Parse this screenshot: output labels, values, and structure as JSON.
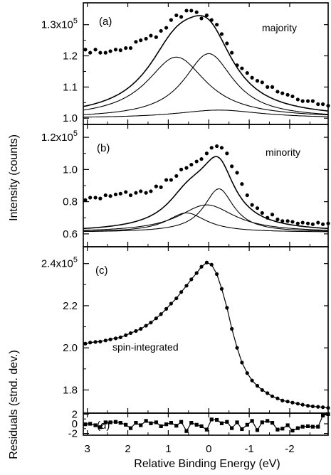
{
  "chart_data": [
    {
      "type": "scatter",
      "panel_label": "(a)",
      "annotation": "majority",
      "y_ticks": [
        "1.3x10^5",
        "1.2",
        "1.1",
        "1.0"
      ],
      "ytick_values": [
        130000,
        120000,
        110000,
        100000
      ],
      "ylim": [
        98000,
        137000
      ],
      "xlim": [
        3.1,
        -2.95
      ],
      "points": [
        [
          3.05,
          122000
        ],
        [
          2.93,
          121000
        ],
        [
          2.8,
          122000
        ],
        [
          2.68,
          121000
        ],
        [
          2.55,
          121000
        ],
        [
          2.43,
          121500
        ],
        [
          2.3,
          122000
        ],
        [
          2.18,
          121800
        ],
        [
          2.05,
          122500
        ],
        [
          1.93,
          122500
        ],
        [
          1.8,
          124500
        ],
        [
          1.68,
          125000
        ],
        [
          1.55,
          125500
        ],
        [
          1.43,
          126500
        ],
        [
          1.3,
          126000
        ],
        [
          1.18,
          128000
        ],
        [
          1.05,
          129000
        ],
        [
          0.93,
          131500
        ],
        [
          0.8,
          133000
        ],
        [
          0.68,
          132500
        ],
        [
          0.55,
          134500
        ],
        [
          0.43,
          134500
        ],
        [
          0.3,
          134000
        ],
        [
          0.18,
          132000
        ],
        [
          0.05,
          133000
        ],
        [
          -0.07,
          131500
        ],
        [
          -0.2,
          130000
        ],
        [
          -0.32,
          127000
        ],
        [
          -0.45,
          124000
        ],
        [
          -0.57,
          121000
        ],
        [
          -0.7,
          117000
        ],
        [
          -0.82,
          116000
        ],
        [
          -0.95,
          114500
        ],
        [
          -1.07,
          113000
        ],
        [
          -1.2,
          112000
        ],
        [
          -1.32,
          111500
        ],
        [
          -1.45,
          110000
        ],
        [
          -1.57,
          110000
        ],
        [
          -1.7,
          108500
        ],
        [
          -1.82,
          108000
        ],
        [
          -1.95,
          107500
        ],
        [
          -2.07,
          107000
        ],
        [
          -2.2,
          106000
        ],
        [
          -2.32,
          105500
        ],
        [
          -2.45,
          105500
        ],
        [
          -2.57,
          105500
        ],
        [
          -2.7,
          104500
        ],
        [
          -2.82,
          104500
        ],
        [
          -2.95,
          104000
        ]
      ],
      "curves": [
        {
          "kind": "total",
          "baseline": 100000,
          "components": [
            {
              "a": 19600,
              "c": 0.8,
              "w": 0.9
            },
            {
              "a": 20700,
              "c": 0.0,
              "w": 0.75
            }
          ]
        },
        {
          "kind": "component",
          "baseline": 100000,
          "components": [
            {
              "a": 19600,
              "c": 0.8,
              "w": 0.9
            }
          ]
        },
        {
          "kind": "component",
          "baseline": 100000,
          "components": [
            {
              "a": 20700,
              "c": 0.0,
              "w": 0.75
            }
          ]
        },
        {
          "kind": "background",
          "baseline": 100000,
          "components": [
            {
              "a": 2600,
              "c": -0.25,
              "w": 1.3
            }
          ]
        }
      ]
    },
    {
      "type": "scatter",
      "panel_label": "(b)",
      "annotation": "minority",
      "y_ticks": [
        "1.2x10^5",
        "1.0",
        "0.8",
        "0.6"
      ],
      "ytick_values": [
        120000,
        100000,
        80000,
        60000
      ],
      "ylim": [
        52000,
        128000
      ],
      "xlim": [
        3.1,
        -2.95
      ],
      "points": [
        [
          3.05,
          81000
        ],
        [
          2.93,
          82500
        ],
        [
          2.8,
          82500
        ],
        [
          2.68,
          82000
        ],
        [
          2.55,
          84000
        ],
        [
          2.43,
          83500
        ],
        [
          2.3,
          84500
        ],
        [
          2.18,
          85000
        ],
        [
          2.05,
          86000
        ],
        [
          1.93,
          84000
        ],
        [
          1.8,
          85500
        ],
        [
          1.68,
          86500
        ],
        [
          1.55,
          85500
        ],
        [
          1.43,
          86500
        ],
        [
          1.3,
          89500
        ],
        [
          1.18,
          89000
        ],
        [
          1.05,
          93500
        ],
        [
          0.93,
          93500
        ],
        [
          0.8,
          96000
        ],
        [
          0.68,
          100000
        ],
        [
          0.55,
          101000
        ],
        [
          0.43,
          103000
        ],
        [
          0.3,
          105000
        ],
        [
          0.18,
          106500
        ],
        [
          0.05,
          110000
        ],
        [
          -0.07,
          113500
        ],
        [
          -0.2,
          114500
        ],
        [
          -0.32,
          113500
        ],
        [
          -0.45,
          110000
        ],
        [
          -0.57,
          102000
        ],
        [
          -0.7,
          98000
        ],
        [
          -0.82,
          91000
        ],
        [
          -0.95,
          84000
        ],
        [
          -1.07,
          78000
        ],
        [
          -1.2,
          76000
        ],
        [
          -1.32,
          73000
        ],
        [
          -1.45,
          70000
        ],
        [
          -1.57,
          72000
        ],
        [
          -1.7,
          69000
        ],
        [
          -1.82,
          68000
        ],
        [
          -1.95,
          68000
        ],
        [
          -2.07,
          67500
        ],
        [
          -2.2,
          66500
        ],
        [
          -2.32,
          67000
        ],
        [
          -2.45,
          66500
        ],
        [
          -2.57,
          66000
        ],
        [
          -2.7,
          67000
        ],
        [
          -2.82,
          66000
        ],
        [
          -2.95,
          66500
        ]
      ],
      "curves": [
        {
          "kind": "total",
          "baseline": 61000,
          "components": [
            {
              "a": 12000,
              "c": 0.55,
              "w": 0.6
            },
            {
              "a": 17000,
              "c": 0.05,
              "w": 0.85
            },
            {
              "a": 27000,
              "c": -0.25,
              "w": 0.45
            }
          ]
        },
        {
          "kind": "component",
          "baseline": 61000,
          "components": [
            {
              "a": 12000,
              "c": 0.55,
              "w": 0.6
            }
          ]
        },
        {
          "kind": "component",
          "baseline": 61000,
          "components": [
            {
              "a": 17000,
              "c": 0.05,
              "w": 0.85
            }
          ]
        },
        {
          "kind": "component",
          "baseline": 61000,
          "components": [
            {
              "a": 27000,
              "c": -0.25,
              "w": 0.45
            }
          ]
        }
      ]
    },
    {
      "type": "scatter",
      "panel_label": "(c)",
      "annotation": "spin-integrated",
      "y_ticks": [
        "2.4x10^5",
        "2.2",
        "2.0",
        "1.8"
      ],
      "ytick_values": [
        240000,
        220000,
        200000,
        180000
      ],
      "ylim": [
        169000,
        248000
      ],
      "xlim": [
        3.1,
        -2.95
      ],
      "points": [
        [
          3.05,
          202000
        ],
        [
          2.93,
          202500
        ],
        [
          2.8,
          202800
        ],
        [
          2.68,
          203000
        ],
        [
          2.55,
          203500
        ],
        [
          2.43,
          204000
        ],
        [
          2.3,
          204500
        ],
        [
          2.18,
          205000
        ],
        [
          2.05,
          206000
        ],
        [
          1.93,
          207000
        ],
        [
          1.8,
          208000
        ],
        [
          1.68,
          209000
        ],
        [
          1.55,
          210500
        ],
        [
          1.43,
          212000
        ],
        [
          1.3,
          214000
        ],
        [
          1.18,
          216000
        ],
        [
          1.05,
          218500
        ],
        [
          0.93,
          221000
        ],
        [
          0.8,
          223500
        ],
        [
          0.68,
          226500
        ],
        [
          0.55,
          229500
        ],
        [
          0.43,
          232500
        ],
        [
          0.3,
          235500
        ],
        [
          0.18,
          238500
        ],
        [
          0.05,
          240500
        ],
        [
          -0.07,
          239500
        ],
        [
          -0.2,
          235000
        ],
        [
          -0.32,
          228000
        ],
        [
          -0.45,
          219000
        ],
        [
          -0.57,
          209000
        ],
        [
          -0.7,
          200000
        ],
        [
          -0.82,
          193000
        ],
        [
          -0.95,
          188000
        ],
        [
          -1.07,
          184500
        ],
        [
          -1.2,
          182000
        ],
        [
          -1.32,
          180000
        ],
        [
          -1.45,
          178500
        ],
        [
          -1.57,
          177000
        ],
        [
          -1.7,
          176000
        ],
        [
          -1.82,
          175000
        ],
        [
          -1.95,
          174500
        ],
        [
          -2.07,
          174000
        ],
        [
          -2.2,
          173500
        ],
        [
          -2.32,
          173000
        ],
        [
          -2.45,
          172500
        ],
        [
          -2.57,
          172200
        ],
        [
          -2.7,
          172000
        ],
        [
          -2.82,
          171800
        ],
        [
          -2.95,
          171500
        ]
      ],
      "line_through_points": true
    },
    {
      "type": "line",
      "panel_label": "(d)",
      "y_ticks": [
        "2",
        "0",
        "-2"
      ],
      "ytick_values": [
        2,
        0,
        -2
      ],
      "ylim": [
        -2.35,
        2.2
      ],
      "xlim": [
        3.1,
        -2.95
      ],
      "x_ticks": [
        "3",
        "2",
        "1",
        "0",
        "-1",
        "-2"
      ],
      "xtick_values": [
        3,
        2,
        1,
        0,
        -1,
        -2
      ],
      "points": [
        [
          3.05,
          -0.1
        ],
        [
          2.93,
          0.0
        ],
        [
          2.8,
          -0.3
        ],
        [
          2.68,
          -0.7
        ],
        [
          2.55,
          0.3
        ],
        [
          2.43,
          0.3
        ],
        [
          2.3,
          0.4
        ],
        [
          2.18,
          0.2
        ],
        [
          2.05,
          -0.2
        ],
        [
          1.93,
          -0.9
        ],
        [
          1.8,
          0.2
        ],
        [
          1.68,
          -0.3
        ],
        [
          1.55,
          0.6
        ],
        [
          1.43,
          0.1
        ],
        [
          1.3,
          0.3
        ],
        [
          1.18,
          -0.5
        ],
        [
          1.05,
          -0.1
        ],
        [
          0.93,
          0.2
        ],
        [
          0.8,
          -0.4
        ],
        [
          0.68,
          0.4
        ],
        [
          0.55,
          -1.5
        ],
        [
          0.43,
          0.2
        ],
        [
          0.3,
          -0.2
        ],
        [
          0.18,
          -0.5
        ],
        [
          0.05,
          -1.2
        ],
        [
          -0.07,
          0.9
        ],
        [
          -0.2,
          0.8
        ],
        [
          -0.32,
          0.1
        ],
        [
          -0.45,
          0.4
        ],
        [
          -0.57,
          -0.9
        ],
        [
          -0.7,
          0.3
        ],
        [
          -0.82,
          -1.1
        ],
        [
          -0.95,
          -0.2
        ],
        [
          -1.07,
          0.6
        ],
        [
          -1.2,
          -1.3
        ],
        [
          -1.32,
          0.3
        ],
        [
          -1.45,
          0.6
        ],
        [
          -1.57,
          0.2
        ],
        [
          -1.7,
          -1.2
        ],
        [
          -1.82,
          -1.0
        ],
        [
          -1.95,
          -0.3
        ],
        [
          -2.07,
          -1.4
        ],
        [
          -2.2,
          -0.9
        ],
        [
          -2.32,
          -0.6
        ],
        [
          -2.45,
          -0.5
        ],
        [
          -2.57,
          -0.6
        ],
        [
          -2.7,
          -0.6
        ],
        [
          -2.82,
          1.7
        ],
        [
          -2.95,
          2.0
        ]
      ],
      "marker": "square"
    }
  ],
  "axes": {
    "ylabel_top": "Intensity (counts)",
    "ylabel_bottom": "Residuals (stnd. dev.)",
    "xlabel": "Relative Binding Energy (eV)"
  }
}
